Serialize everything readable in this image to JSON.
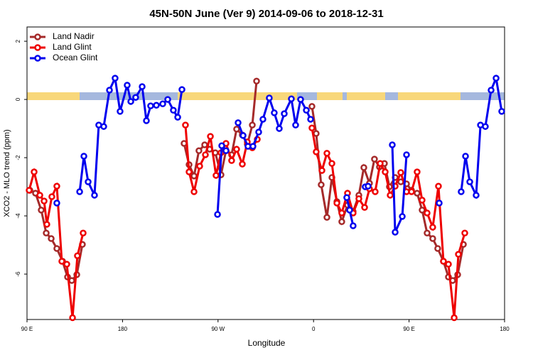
{
  "chart_data": {
    "type": "line",
    "title": "45N-50N June (Ver 9)   2014-09-06 to 2018-12-31",
    "x_label": "Longitude",
    "y_label": "XCO2 - MLO trend (ppm)",
    "xlim": [
      90,
      540
    ],
    "xticks": [
      {
        "value": 90,
        "label": "90 E"
      },
      {
        "value": 180,
        "label": "180"
      },
      {
        "value": 270,
        "label": "90 W"
      },
      {
        "value": 360,
        "label": "0"
      },
      {
        "value": 450,
        "label": "90 E"
      },
      {
        "value": 540,
        "label": "180"
      }
    ],
    "ylim": [
      -7.56,
      2.49
    ],
    "yticks": [
      -6,
      -4,
      -2,
      0,
      2
    ],
    "legend": "top-left",
    "series": [
      {
        "name": "Land Nadir",
        "color": "#a52a2a",
        "x": [
          92.7,
          98.0,
          103.4,
          108.1,
          112.8,
          118.1,
          123.5,
          128.2,
          132.2,
          136.9,
          142.2,
          null,
          238.0,
          242.7,
          247.4,
          252.0,
          257.4,
          262.1,
          267.4,
          272.8,
          277.5,
          282.8,
          287.5,
          292.9,
          297.6,
          302.3,
          306.3,
          null,
          358.5,
          362.5,
          367.2,
          372.6,
          377.3,
          382.0,
          386.6,
          392.0,
          397.3,
          402.7,
          407.4,
          412.7,
          417.4,
          422.1,
          426.8,
          431.5,
          436.9,
          442.2,
          447.6,
          452.3,
          457.6,
          462.3,
          467.0,
          472.3,
          477.0,
          482.4,
          487.1,
          491.1,
          495.8,
          501.2
        ],
        "values": [
          -3.12,
          -3.22,
          -3.8,
          -4.59,
          -4.78,
          -5.12,
          -5.56,
          -6.1,
          -6.22,
          -6.02,
          -4.98,
          null,
          -1.51,
          -2.24,
          -2.63,
          -1.76,
          -1.56,
          -1.71,
          -1.83,
          -2.59,
          -1.76,
          -1.9,
          -1.02,
          -1.22,
          -1.54,
          -0.88,
          0.63,
          null,
          -0.24,
          -1.17,
          -2.93,
          -4.05,
          -2.68,
          -3.51,
          -4.2,
          -3.63,
          -3.85,
          -3.29,
          -2.34,
          -2.88,
          -2.05,
          -2.32,
          -2.2,
          -3.0,
          -2.68,
          -2.83,
          -2.9,
          -3.12,
          -3.22,
          -3.8,
          -4.59,
          -4.78,
          -5.12,
          -5.56,
          -6.1,
          -6.22,
          -6.02,
          -4.98
        ]
      },
      {
        "name": "Land Glint",
        "color": "#ee0000",
        "x": [
          92.0,
          96.7,
          102.1,
          106.1,
          108.7,
          113.4,
          118.1,
          122.8,
          127.5,
          132.9,
          137.5,
          142.9,
          null,
          239.3,
          242.7,
          247.4,
          252.7,
          258.1,
          262.8,
          268.1,
          272.8,
          277.5,
          282.8,
          287.5,
          292.9,
          297.6,
          302.3,
          307.0,
          null,
          358.5,
          362.5,
          367.9,
          372.6,
          377.3,
          382.0,
          386.6,
          392.0,
          397.3,
          402.7,
          408.1,
          412.7,
          418.1,
          422.8,
          427.5,
          432.2,
          436.9,
          442.2,
          447.6,
          452.3,
          457.6,
          462.3,
          467.0,
          472.3,
          477.7,
          482.4,
          487.1,
          492.5,
          496.5,
          502.5
        ],
        "values": [
          -3.12,
          -2.49,
          -3.29,
          -3.49,
          -4.29,
          -3.34,
          -2.98,
          -5.56,
          -5.66,
          -7.5,
          -5.37,
          -4.59,
          null,
          -0.88,
          -2.49,
          -3.17,
          -2.29,
          -1.9,
          -1.27,
          -2.61,
          -1.83,
          -1.51,
          -2.1,
          -1.71,
          -2.22,
          -1.46,
          -1.66,
          -1.37,
          null,
          -0.98,
          -1.8,
          -2.44,
          -1.85,
          -2.2,
          -3.56,
          -3.9,
          -3.22,
          -3.9,
          -3.41,
          -3.71,
          -3.07,
          -3.17,
          -2.2,
          -2.49,
          -3.29,
          -2.98,
          -2.51,
          -3.17,
          -3.17,
          -2.49,
          -3.46,
          -3.9,
          -4.39,
          -2.98,
          -5.56,
          -5.66,
          -7.5,
          -5.32,
          -4.59
        ]
      },
      {
        "name": "Ocean Glint",
        "color": "#0000ee",
        "x": [
          118.1,
          null,
          139.6,
          143.6,
          147.6,
          153.6,
          157.6,
          162.3,
          167.7,
          173.0,
          177.7,
          184.4,
          187.8,
          192.4,
          198.5,
          202.5,
          206.5,
          211.9,
          217.9,
          222.6,
          227.9,
          232.0,
          236.0,
          null,
          269.5,
          273.5,
          277.5,
          null,
          288.9,
          293.6,
          298.2,
          302.9,
          308.3,
          312.3,
          318.3,
          323.0,
          327.7,
          332.4,
          339.1,
          343.1,
          347.8,
          353.2,
          357.2,
          null,
          391.3,
          394.0,
          397.3,
          null,
          408.7,
          411.4,
          null,
          434.2,
          436.9,
          443.6,
          447.6,
          null,
          478.4,
          null,
          499.1,
          503.2,
          507.2,
          513.2,
          517.3,
          521.9,
          527.3,
          532.0,
          537.3
        ],
        "values": [
          -3.56,
          null,
          -3.17,
          -1.95,
          -2.83,
          -3.29,
          -0.88,
          -0.93,
          0.32,
          0.73,
          -0.41,
          0.49,
          -0.07,
          0.07,
          0.44,
          -0.73,
          -0.22,
          -0.2,
          -0.15,
          0.0,
          -0.37,
          -0.61,
          0.34,
          null,
          -3.95,
          -1.59,
          -1.76,
          null,
          -0.8,
          -1.24,
          -1.61,
          -1.61,
          -1.12,
          -0.68,
          0.05,
          -0.46,
          -1.0,
          -0.49,
          0.02,
          -0.88,
          0.0,
          -0.37,
          -0.68,
          null,
          -3.37,
          -3.8,
          -4.34,
          null,
          -3.0,
          -2.98,
          null,
          -1.56,
          -4.56,
          -4.02,
          -1.9,
          null,
          -3.56,
          null,
          -3.17,
          -1.95,
          -2.83,
          -3.29,
          -0.88,
          -0.93,
          0.32,
          0.73,
          -0.41
        ]
      }
    ]
  }
}
